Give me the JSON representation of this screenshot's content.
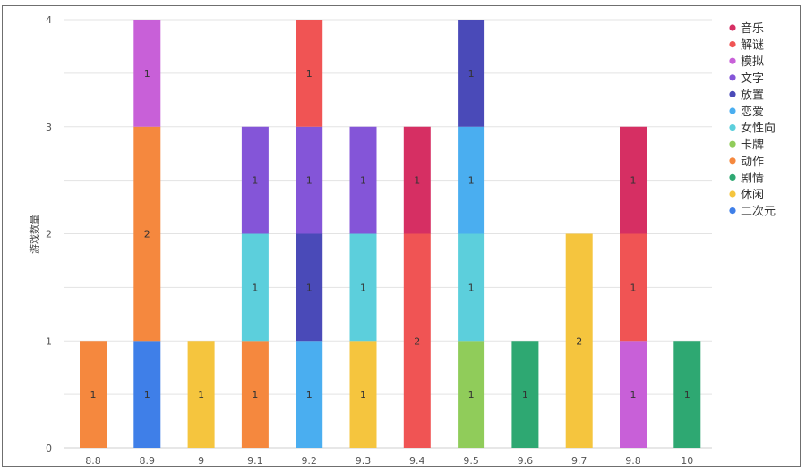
{
  "chart_data": {
    "type": "bar",
    "stacked": true,
    "ylabel": "游戏数量",
    "xlabel": "",
    "ylim": [
      0,
      4
    ],
    "y_ticks": [
      0,
      1,
      2,
      3,
      4
    ],
    "grid": true,
    "legend_position": "right",
    "categories": [
      "8.8",
      "8.9",
      "9",
      "9.1",
      "9.2",
      "9.3",
      "9.4",
      "9.5",
      "9.6",
      "9.7",
      "9.8",
      "10"
    ],
    "series": [
      {
        "name": "音乐",
        "color": "#d62f63",
        "values": [
          0,
          0,
          0,
          0,
          0,
          0,
          1,
          0,
          0,
          0,
          1,
          0
        ]
      },
      {
        "name": "解谜",
        "color": "#f05454",
        "values": [
          0,
          0,
          0,
          0,
          1,
          0,
          2,
          0,
          0,
          0,
          1,
          0
        ]
      },
      {
        "name": "模拟",
        "color": "#c860d8",
        "values": [
          0,
          1,
          0,
          0,
          0,
          0,
          0,
          0,
          0,
          0,
          1,
          0
        ]
      },
      {
        "name": "文字",
        "color": "#8455d8",
        "values": [
          0,
          0,
          0,
          1,
          1,
          1,
          0,
          0,
          0,
          0,
          0,
          0
        ]
      },
      {
        "name": "放置",
        "color": "#4a4ab8",
        "values": [
          0,
          0,
          0,
          0,
          1,
          0,
          0,
          1,
          0,
          0,
          0,
          0
        ]
      },
      {
        "name": "恋爱",
        "color": "#4aaef0",
        "values": [
          0,
          0,
          0,
          0,
          1,
          0,
          0,
          1,
          0,
          0,
          0,
          0
        ]
      },
      {
        "name": "女性向",
        "color": "#5ccfdc",
        "values": [
          0,
          0,
          0,
          1,
          0,
          1,
          0,
          1,
          0,
          0,
          0,
          0
        ]
      },
      {
        "name": "卡牌",
        "color": "#90cc5a",
        "values": [
          0,
          0,
          0,
          0,
          0,
          0,
          0,
          1,
          0,
          0,
          0,
          0
        ]
      },
      {
        "name": "动作",
        "color": "#f5883e",
        "values": [
          1,
          2,
          0,
          1,
          0,
          0,
          0,
          0,
          0,
          0,
          0,
          0
        ]
      },
      {
        "name": "剧情",
        "color": "#2ea872",
        "values": [
          0,
          0,
          0,
          0,
          0,
          0,
          0,
          0,
          1,
          0,
          0,
          1
        ]
      },
      {
        "name": "休闲",
        "color": "#f5c53e",
        "values": [
          0,
          0,
          1,
          0,
          0,
          1,
          0,
          0,
          0,
          2,
          0,
          0
        ]
      },
      {
        "name": "二次元",
        "color": "#3f7fe8",
        "values": [
          0,
          1,
          0,
          0,
          0,
          0,
          0,
          0,
          0,
          0,
          0,
          0
        ]
      }
    ],
    "stacks": [
      [
        "动作"
      ],
      [
        "二次元",
        "动作",
        "模拟"
      ],
      [
        "休闲"
      ],
      [
        "动作",
        "女性向",
        "文字"
      ],
      [
        "恋爱",
        "放置",
        "文字",
        "解谜"
      ],
      [
        "休闲",
        "女性向",
        "文字"
      ],
      [
        "解谜",
        "音乐"
      ],
      [
        "卡牌",
        "女性向",
        "恋爱",
        "放置"
      ],
      [
        "剧情"
      ],
      [
        "休闲"
      ],
      [
        "模拟",
        "解谜",
        "音乐"
      ],
      [
        "剧情"
      ]
    ]
  }
}
